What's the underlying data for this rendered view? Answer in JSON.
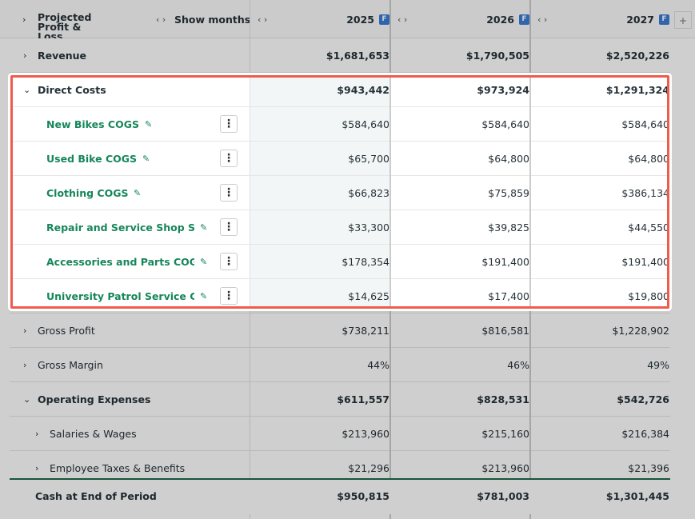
{
  "header": {
    "title": "Projected Profit & Loss",
    "toggle": "Show months",
    "years": [
      {
        "year": "2025",
        "badge": "F"
      },
      {
        "year": "2026",
        "badge": "F"
      },
      {
        "year": "2027",
        "badge": "F"
      }
    ],
    "add": "+"
  },
  "rows_above": [
    {
      "label": "Revenue",
      "values": [
        "$1,681,653",
        "$1,790,505",
        "$2,520,226"
      ]
    }
  ],
  "direct_costs": {
    "label": "Direct Costs",
    "values": [
      "$943,442",
      "$973,924",
      "$1,291,324"
    ],
    "items": [
      {
        "label": "New Bikes COGS",
        "values": [
          "$584,640",
          "$584,640",
          "$584,640"
        ]
      },
      {
        "label": "Used Bike COGS",
        "values": [
          "$65,700",
          "$64,800",
          "$64,800"
        ]
      },
      {
        "label": "Clothing COGS",
        "values": [
          "$66,823",
          "$75,859",
          "$386,134"
        ]
      },
      {
        "label": "Repair and Service Shop Su...",
        "values": [
          "$33,300",
          "$39,825",
          "$44,550"
        ]
      },
      {
        "label": "Accessories and Parts COGS",
        "values": [
          "$178,354",
          "$191,400",
          "$191,400"
        ]
      },
      {
        "label": "University Patrol Service Con...",
        "values": [
          "$14,625",
          "$17,400",
          "$19,800"
        ]
      }
    ]
  },
  "summary_rows": [
    {
      "label": "Gross Profit",
      "values": [
        "$738,211",
        "$816,581",
        "$1,228,902"
      ]
    },
    {
      "label": "Gross Margin",
      "values": [
        "44%",
        "46%",
        "49%"
      ]
    }
  ],
  "operating_expenses": {
    "label": "Operating Expenses",
    "values": [
      "$611,557",
      "$828,531",
      "$542,726"
    ],
    "items": [
      {
        "label": "Salaries & Wages",
        "values": [
          "$213,960",
          "$215,160",
          "$216,384"
        ]
      },
      {
        "label": "Employee Taxes & Benefits",
        "values": [
          "$21,296",
          "$213,960",
          "$21,396"
        ]
      }
    ]
  },
  "footer": {
    "label": "Cash at End of Period",
    "values": [
      "$950,815",
      "$781,003",
      "$1,301,445"
    ]
  }
}
